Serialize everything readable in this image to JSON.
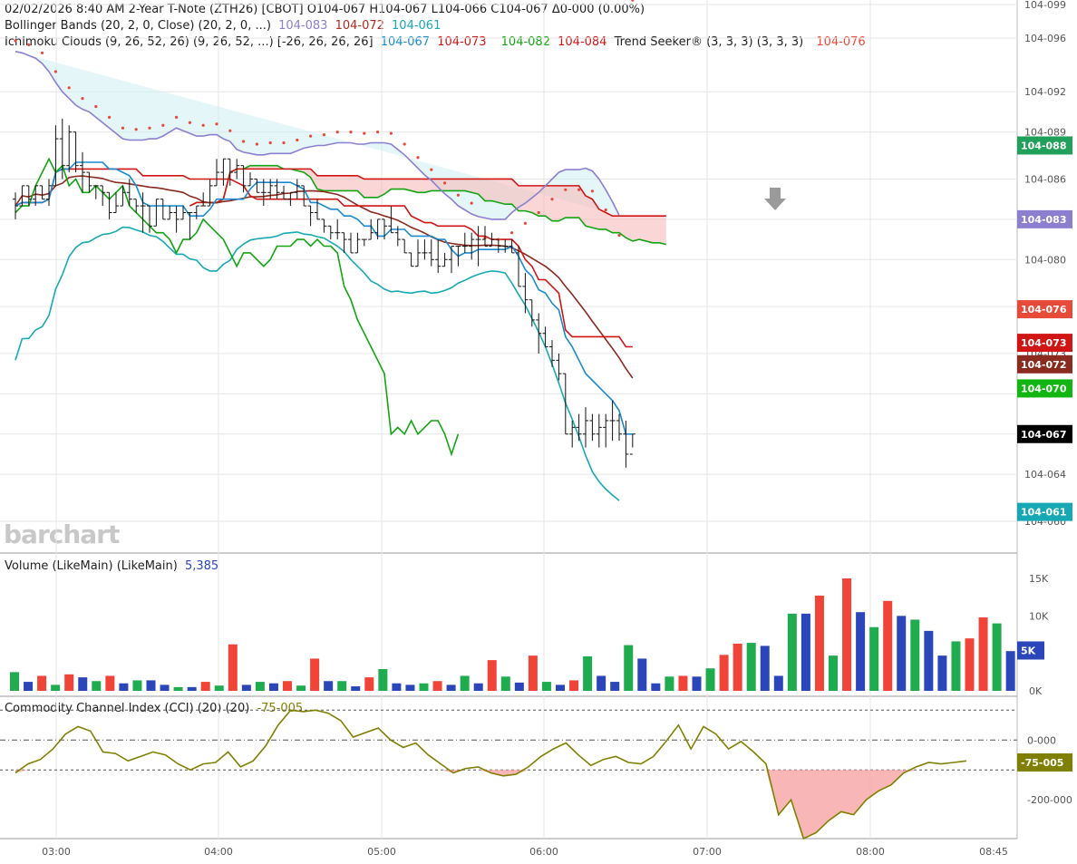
{
  "header": {
    "line1": "02/02/2026  8:40 AM  2-Year T-Note (ZTH26) [CBOT]  O104-067  H104-067  L104-066  C104-067  Δ0-000 (0.00%)",
    "bb_label": "Bollinger Bands (20, 2, 0, Close)  (20, 2, 0, ...)",
    "bb_values": [
      "104-083",
      "104-072",
      "104-061"
    ],
    "ichi_label": "Ichimoku Clouds (9, 26, 52, 26)  (9, 26, 52, ...)  [-26, 26, 26, 26]",
    "ichi_values": [
      "104-067",
      "104-073",
      "104-082",
      "104-084"
    ],
    "ts_label": "Trend Seeker® (3, 3, 3)  (3, 3, 3)",
    "ts_value": "104-076"
  },
  "watermark": "barchart",
  "volume_legend": {
    "label": "Volume (LikeMain)  (LikeMain)",
    "value": "5,385"
  },
  "cci_legend": {
    "label": "Commodity Channel Index (CCI) (20)  (20)",
    "value": "-75-005"
  },
  "colors": {
    "bb_upper": "#8d7fd0",
    "bb_mid": "#8b2a1f",
    "bb_lower": "#17a9b3",
    "tenkan": "#1a8bd0",
    "kijun": "#d01515",
    "span_a": "#12a512",
    "span_b": "#d01515",
    "chikou": "#12a512",
    "trend": "#e84a3a",
    "vol_up": "#1fac4f",
    "vol_down": "#f04438",
    "vol_neutral": "#2a46b8",
    "cci": "#808000"
  },
  "chart_data": [
    {
      "type": "ohlc",
      "name": "price",
      "y_ticks": [
        "104-099",
        "104-096",
        "104-092",
        "104-089",
        "104-086",
        "104-083",
        "104-080",
        "104-076",
        "104-073",
        "104-070",
        "104-067",
        "104-064",
        "104-060"
      ],
      "x_ticks": [
        "03:00",
        "04:00",
        "05:00",
        "06:00",
        "07:00",
        "08:00",
        "08:45"
      ],
      "last_labels": [
        {
          "text": "104-088",
          "value": 88.5,
          "color": "#21a05a"
        },
        {
          "text": "104-083",
          "value": 83.0,
          "color": "#8d7fd0"
        },
        {
          "text": "104-076",
          "value": 76.3,
          "color": "#e84a3a"
        },
        {
          "text": "104-073",
          "value": 73.8,
          "color": "#d01515"
        },
        {
          "text": "104-072",
          "value": 72.2,
          "color": "#8b2a1f"
        },
        {
          "text": "104-070",
          "value": 70.4,
          "color": "#12b512"
        },
        {
          "text": "104-067",
          "value": 67.0,
          "color": "#000000"
        },
        {
          "text": "104-061",
          "value": 61.2,
          "color": "#17a9b3"
        }
      ],
      "bars": [
        [
          84.5,
          85.0,
          83.0,
          84.0
        ],
        [
          84.0,
          85.5,
          84.0,
          85.5
        ],
        [
          85.5,
          85.5,
          84.0,
          84.5
        ],
        [
          84.5,
          85.5,
          84.0,
          85.5
        ],
        [
          85.5,
          85.5,
          84.5,
          84.5
        ],
        [
          84.5,
          86.0,
          84.0,
          85.5
        ],
        [
          85.5,
          90.0,
          85.5,
          89.0
        ],
        [
          89.0,
          90.5,
          86.0,
          87.0
        ],
        [
          87.0,
          90.0,
          86.5,
          89.5
        ],
        [
          89.5,
          89.5,
          86.5,
          87.0
        ],
        [
          87.0,
          88.0,
          85.0,
          86.5
        ],
        [
          86.5,
          86.5,
          85.0,
          85.5
        ],
        [
          85.5,
          85.5,
          84.5,
          85.5
        ],
        [
          85.5,
          85.5,
          84.0,
          85.0
        ],
        [
          85.0,
          85.0,
          83.0,
          83.5
        ],
        [
          83.5,
          85.0,
          83.5,
          84.0
        ],
        [
          84.0,
          85.5,
          84.0,
          85.0
        ],
        [
          85.0,
          86.0,
          84.0,
          84.5
        ],
        [
          84.5,
          84.5,
          83.5,
          84.0
        ],
        [
          84.0,
          85.0,
          82.0,
          84.0
        ],
        [
          84.0,
          84.0,
          82.0,
          82.5
        ],
        [
          82.5,
          84.5,
          82.5,
          84.5
        ],
        [
          84.5,
          84.5,
          83.0,
          83.0
        ],
        [
          83.0,
          84.0,
          83.0,
          83.5
        ],
        [
          83.5,
          84.0,
          82.0,
          83.0
        ],
        [
          83.0,
          84.0,
          83.0,
          83.5
        ],
        [
          83.5,
          83.5,
          81.5,
          83.5
        ],
        [
          83.5,
          84.0,
          83.0,
          84.0
        ],
        [
          84.0,
          85.0,
          84.0,
          84.0
        ],
        [
          84.0,
          86.0,
          84.0,
          85.5
        ],
        [
          85.5,
          87.5,
          85.5,
          86.5
        ],
        [
          86.5,
          87.5,
          85.5,
          87.5
        ],
        [
          87.5,
          87.5,
          85.5,
          86.5
        ],
        [
          86.5,
          87.5,
          86.0,
          87.0
        ],
        [
          87.0,
          87.0,
          85.0,
          85.5
        ],
        [
          85.5,
          86.5,
          85.5,
          86.0
        ],
        [
          86.0,
          86.0,
          85.0,
          85.0
        ],
        [
          85.0,
          86.0,
          84.0,
          85.0
        ],
        [
          85.0,
          86.0,
          84.5,
          85.5
        ],
        [
          85.5,
          86.0,
          84.5,
          85.0
        ],
        [
          85.0,
          85.5,
          84.5,
          84.5
        ],
        [
          84.5,
          85.0,
          84.0,
          85.0
        ],
        [
          85.0,
          86.0,
          84.5,
          85.5
        ],
        [
          85.5,
          85.5,
          84.0,
          84.0
        ],
        [
          84.0,
          84.0,
          82.5,
          83.5
        ],
        [
          83.5,
          84.5,
          83.0,
          83.0
        ],
        [
          83.0,
          83.0,
          82.0,
          82.5
        ],
        [
          82.5,
          82.5,
          81.5,
          82.0
        ],
        [
          82.0,
          83.0,
          81.5,
          82.0
        ],
        [
          82.0,
          82.0,
          80.5,
          81.5
        ],
        [
          81.5,
          82.0,
          80.5,
          80.5
        ],
        [
          80.5,
          82.0,
          80.5,
          81.5
        ],
        [
          81.5,
          81.5,
          81.0,
          81.5
        ],
        [
          81.5,
          83.0,
          81.5,
          82.0
        ],
        [
          82.0,
          83.0,
          81.5,
          83.0
        ],
        [
          83.0,
          83.0,
          81.5,
          82.5
        ],
        [
          82.5,
          84.0,
          82.0,
          82.0
        ],
        [
          82.0,
          82.5,
          81.0,
          81.5
        ],
        [
          81.5,
          81.5,
          80.5,
          80.5
        ],
        [
          80.5,
          80.5,
          79.5,
          79.5
        ],
        [
          79.5,
          81.5,
          79.5,
          80.5
        ],
        [
          80.5,
          81.5,
          80.0,
          80.5
        ],
        [
          80.5,
          81.5,
          79.5,
          80.0
        ],
        [
          80.0,
          81.5,
          79.0,
          79.5
        ],
        [
          79.5,
          80.5,
          79.5,
          80.0
        ],
        [
          80.0,
          81.0,
          79.0,
          81.0
        ],
        [
          81.0,
          81.0,
          79.5,
          81.0
        ],
        [
          81.0,
          82.0,
          80.5,
          81.0
        ],
        [
          81.0,
          82.0,
          80.0,
          81.5
        ],
        [
          81.5,
          82.5,
          79.5,
          81.5
        ],
        [
          81.5,
          82.5,
          81.0,
          81.0
        ],
        [
          81.0,
          82.0,
          81.0,
          81.5
        ],
        [
          81.5,
          81.5,
          80.5,
          81.0
        ],
        [
          81.0,
          81.5,
          80.5,
          81.0
        ],
        [
          81.0,
          81.5,
          80.5,
          80.5
        ],
        [
          80.5,
          81.0,
          78.0,
          78.0
        ],
        [
          78.0,
          79.0,
          76.0,
          77.0
        ],
        [
          77.0,
          77.0,
          75.0,
          75.5
        ],
        [
          75.5,
          76.0,
          73.0,
          74.5
        ],
        [
          74.5,
          75.0,
          73.5,
          73.5
        ],
        [
          73.5,
          74.0,
          72.0,
          72.5
        ],
        [
          72.5,
          73.0,
          71.0,
          71.5
        ],
        [
          71.5,
          71.5,
          67.0,
          67.0
        ],
        [
          67.0,
          68.0,
          66.0,
          67.5
        ],
        [
          67.5,
          68.5,
          66.5,
          67.0
        ],
        [
          67.0,
          69.0,
          66.0,
          68.0
        ],
        [
          68.0,
          68.5,
          66.5,
          67.0
        ],
        [
          67.0,
          68.5,
          66.0,
          67.5
        ],
        [
          67.5,
          68.5,
          66.0,
          68.0
        ],
        [
          68.0,
          69.5,
          66.5,
          68.0
        ],
        [
          68.0,
          68.5,
          66.5,
          67.0
        ],
        [
          67.0,
          68.0,
          64.5,
          65.5
        ],
        [
          65.5,
          67.0,
          66.0,
          67.0
        ]
      ],
      "bb_upper": [
        95.5,
        95.4,
        95.2,
        95.0,
        94.6,
        94.0,
        93.2,
        92.5,
        92.0,
        91.5,
        91.2,
        91.0,
        90.6,
        90.2,
        89.8,
        89.4,
        89.0,
        88.9,
        88.9,
        88.9,
        89.0,
        89.0,
        89.2,
        89.5,
        89.8,
        89.6,
        89.4,
        89.2,
        89.2,
        89.3,
        89.3,
        89.0,
        88.8,
        88.2,
        88.0,
        87.9,
        87.8,
        87.8,
        87.9,
        87.9,
        87.9,
        87.9,
        88.1,
        88.3,
        88.4,
        88.5,
        88.5,
        88.6,
        88.7,
        88.7,
        88.7,
        88.6,
        88.6,
        88.7,
        88.7,
        88.7,
        88.6,
        88.2,
        87.8,
        87.3,
        86.8,
        86.3,
        85.9,
        85.4,
        84.9,
        84.5,
        84.0,
        83.7,
        83.4,
        83.2,
        83.1,
        83.0,
        83.0,
        83.0,
        83.5,
        83.9,
        84.2,
        84.6,
        85.0,
        85.5,
        86.0,
        86.5,
        86.7,
        86.7,
        86.7,
        86.8,
        86.6,
        86.0,
        85.2,
        84.3,
        83.3
      ]
    },
    {
      "type": "bar",
      "name": "volume",
      "y_ticks": [
        "15K",
        "10K",
        "5K",
        "0K"
      ],
      "highlight_label": "5K",
      "values": [
        2.5,
        1.2,
        2.0,
        0.8,
        2.2,
        1.8,
        1.3,
        2.0,
        1.0,
        1.4,
        1.4,
        0.8,
        0.5,
        0.5,
        1.2,
        0.7,
        6.2,
        0.8,
        1.2,
        1.0,
        1.3,
        0.7,
        4.3,
        1.3,
        1.3,
        0.6,
        1.8,
        2.9,
        1.0,
        0.8,
        1.0,
        1.3,
        0.8,
        2.0,
        1.0,
        4.1,
        1.9,
        1.1,
        4.7,
        1.2,
        0.8,
        1.4,
        4.6,
        2.0,
        1.2,
        6.1,
        4.3,
        1.0,
        1.9,
        2.0,
        1.9,
        3.0,
        4.8,
        6.3,
        6.4,
        6.0,
        2.0,
        10.3,
        10.3,
        12.7,
        4.7,
        15.0,
        10.5,
        8.5,
        12.0,
        10.0,
        9.5,
        8.0,
        4.7,
        6.6,
        7.0,
        9.8,
        9.0,
        5.3
      ]
    },
    {
      "type": "line",
      "name": "cci",
      "y_ticks": [
        "0-000",
        "-200-000"
      ],
      "highlight_label": "-75-005",
      "ylim": [
        -330,
        110
      ],
      "values": [
        -110,
        -80,
        -65,
        -30,
        20,
        45,
        30,
        -40,
        -45,
        -70,
        -55,
        -40,
        -50,
        -80,
        -100,
        -80,
        -75,
        -40,
        -90,
        -70,
        -20,
        50,
        100,
        95,
        100,
        90,
        65,
        10,
        25,
        40,
        0,
        -25,
        -10,
        -50,
        -80,
        -110,
        -95,
        -90,
        -110,
        -120,
        -115,
        -90,
        -55,
        -30,
        -10,
        -50,
        -85,
        -65,
        -55,
        -75,
        -80,
        -55,
        -5,
        50,
        -30,
        45,
        20,
        -30,
        -5,
        -40,
        -80,
        -250,
        -200,
        -330,
        -310,
        -270,
        -240,
        -250,
        -200,
        -170,
        -150,
        -110,
        -90,
        -75,
        -80,
        -75,
        -70
      ]
    }
  ]
}
